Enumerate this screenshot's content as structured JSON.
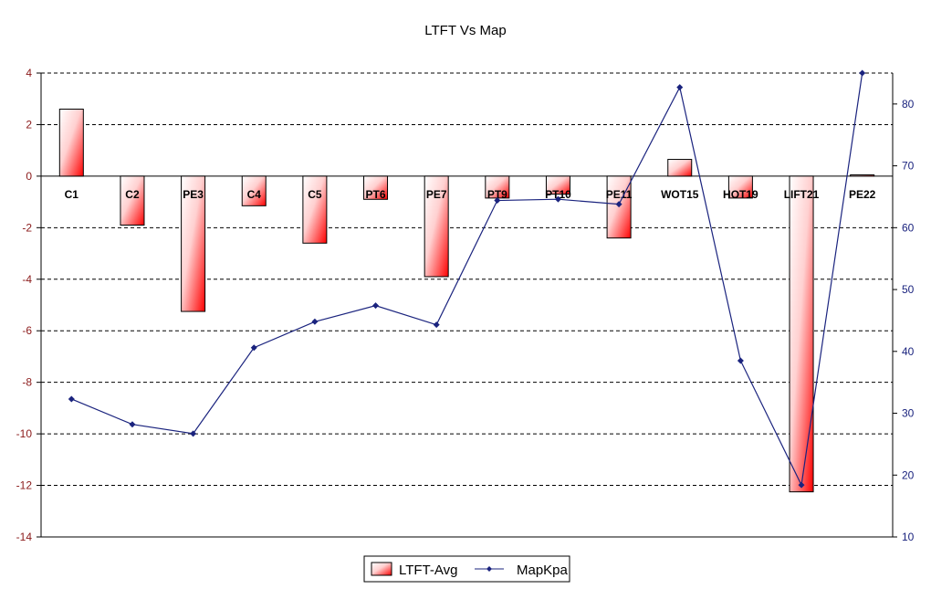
{
  "chart_data": {
    "type": "bar",
    "title": "LTFT Vs Map",
    "categories": [
      "C1",
      "C2",
      "PE3",
      "C4",
      "C5",
      "PT6",
      "PE7",
      "PT9",
      "PT10",
      "PE11",
      "WOT15",
      "HOT19",
      "LIFT21",
      "PE22"
    ],
    "series": [
      {
        "name": "LTFT-Avg",
        "type": "bar",
        "axis": "left",
        "color": "#ff0000",
        "values": [
          2.6,
          -1.9,
          -5.25,
          -1.15,
          -2.6,
          -0.9,
          -3.9,
          -0.85,
          -0.7,
          -2.4,
          0.65,
          -0.85,
          -12.25,
          0.05
        ]
      },
      {
        "name": "MapKpa",
        "type": "line",
        "axis": "right",
        "color": "#1a237e",
        "values": [
          32.3,
          28.2,
          26.7,
          40.6,
          44.8,
          47.4,
          44.3,
          64.4,
          64.6,
          63.8,
          82.7,
          38.5,
          18.4,
          85
        ]
      }
    ],
    "y_left": {
      "min": -14,
      "max": 4,
      "ticks": [
        -14,
        -12,
        -10,
        -8,
        -6,
        -4,
        -2,
        0,
        2,
        4
      ]
    },
    "y_right": {
      "min": 10,
      "max": 85,
      "ticks": [
        10,
        20,
        30,
        40,
        50,
        60,
        70,
        80
      ]
    },
    "grid": "horizontal dashed at left-axis ticks",
    "legend_position": "bottom-center",
    "legend": [
      {
        "label": "LTFT-Avg",
        "kind": "bar"
      },
      {
        "label": "MapKpa",
        "kind": "line"
      }
    ]
  }
}
